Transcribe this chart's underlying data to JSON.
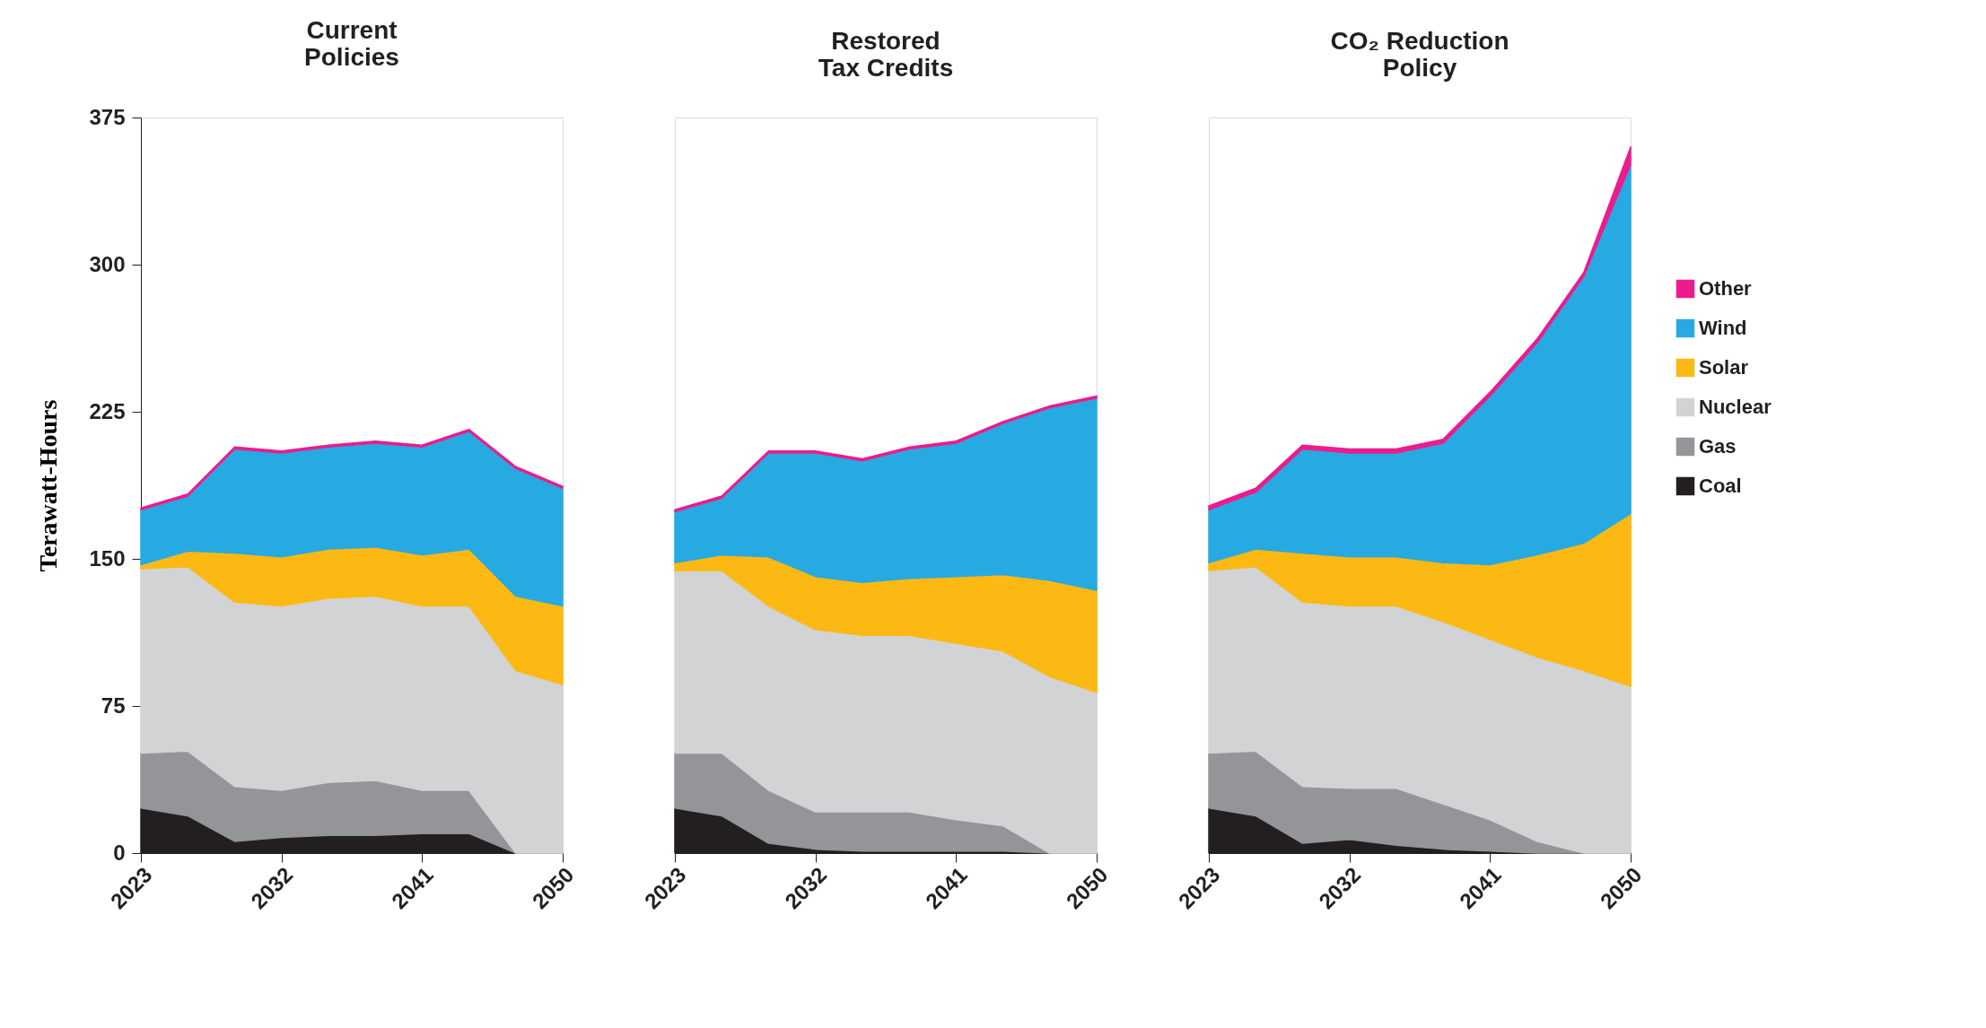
{
  "chart_data": [
    {
      "type": "area",
      "stacked": true,
      "title": "Current\nPolicies",
      "ylabel": "Terawatt-Hours",
      "legend": "right",
      "x": [
        2023,
        2026,
        2029,
        2032,
        2035,
        2038,
        2041,
        2044,
        2047,
        2050
      ],
      "xlim": [
        2023,
        2050
      ],
      "xticks": [
        2023,
        2032,
        2041,
        2050
      ],
      "ylim": [
        0,
        375
      ],
      "yticks": [
        0,
        75,
        150,
        225,
        300,
        375
      ],
      "grid": false,
      "series": [
        {
          "name": "Coal",
          "color": "#231f20",
          "values": [
            23,
            19,
            6,
            8,
            9,
            9,
            10,
            10,
            0,
            0
          ]
        },
        {
          "name": "Gas",
          "color": "#939598",
          "values": [
            28,
            33,
            28,
            24,
            27,
            28,
            22,
            22,
            0,
            0
          ]
        },
        {
          "name": "Nuclear",
          "color": "#d1d3d4",
          "values": [
            94,
            94,
            94,
            94,
            94,
            94,
            94,
            94,
            93,
            86
          ]
        },
        {
          "name": "Solar",
          "color": "#fdb913",
          "values": [
            2,
            8,
            25,
            25,
            25,
            25,
            26,
            29,
            38,
            40
          ]
        },
        {
          "name": "Wind",
          "color": "#27aae1",
          "values": [
            28,
            28,
            53,
            53,
            52,
            53,
            55,
            60,
            65,
            60
          ]
        },
        {
          "name": "Other",
          "color": "#ec1c8c",
          "values": [
            1,
            1,
            1,
            1,
            1,
            1,
            1,
            1,
            1,
            1
          ]
        }
      ]
    },
    {
      "type": "area",
      "stacked": true,
      "title": "Restored\nTax Credits",
      "tick_labels": "x",
      "x": [
        2023,
        2026,
        2029,
        2032,
        2035,
        2038,
        2041,
        2044,
        2047,
        2050
      ],
      "xlim": [
        2023,
        2050
      ],
      "xticks": [
        2023,
        2032,
        2041,
        2050
      ],
      "ylim": [
        0,
        375
      ],
      "grid": false,
      "series": [
        {
          "color": "#231f20",
          "values": [
            23,
            19,
            5,
            2,
            1,
            1,
            1,
            1,
            0,
            0
          ]
        },
        {
          "color": "#939598",
          "values": [
            28,
            32,
            27,
            19,
            20,
            20,
            16,
            13,
            0,
            0
          ]
        },
        {
          "color": "#d1d3d4",
          "values": [
            93,
            93,
            94,
            93,
            90,
            90,
            90,
            89,
            90,
            82
          ]
        },
        {
          "color": "#fdb913",
          "values": [
            4,
            8,
            25,
            27,
            27,
            29,
            34,
            39,
            49,
            52
          ]
        },
        {
          "color": "#27aae1",
          "values": [
            26,
            29,
            53,
            63,
            62,
            66,
            68,
            77,
            88,
            98
          ]
        },
        {
          "color": "#ec1c8c",
          "values": [
            1,
            1,
            1,
            1,
            1,
            1,
            1,
            1,
            1,
            1
          ]
        }
      ]
    },
    {
      "type": "area",
      "stacked": true,
      "title": "CO₂ Reduction\nPolicy",
      "tick_labels": "x",
      "x": [
        2023,
        2026,
        2029,
        2032,
        2035,
        2038,
        2041,
        2044,
        2047,
        2050
      ],
      "xlim": [
        2023,
        2050
      ],
      "xticks": [
        2023,
        2032,
        2041,
        2050
      ],
      "ylim": [
        0,
        375
      ],
      "grid": false,
      "series": [
        {
          "color": "#231f20",
          "values": [
            23,
            19,
            5,
            7,
            4,
            2,
            1,
            0,
            0,
            0
          ]
        },
        {
          "color": "#939598",
          "values": [
            28,
            33,
            29,
            26,
            29,
            23,
            16,
            6,
            0,
            0
          ]
        },
        {
          "color": "#d1d3d4",
          "values": [
            93,
            94,
            94,
            93,
            93,
            93,
            92,
            94,
            93,
            85
          ]
        },
        {
          "color": "#fdb913",
          "values": [
            4,
            9,
            25,
            25,
            25,
            30,
            38,
            52,
            65,
            88
          ]
        },
        {
          "color": "#27aae1",
          "values": [
            27,
            29,
            53,
            53,
            53,
            61,
            86,
            108,
            136,
            178
          ]
        },
        {
          "color": "#ec1c8c",
          "values": [
            2,
            2,
            2,
            2,
            2,
            2,
            2,
            2,
            2,
            9
          ]
        }
      ]
    }
  ]
}
